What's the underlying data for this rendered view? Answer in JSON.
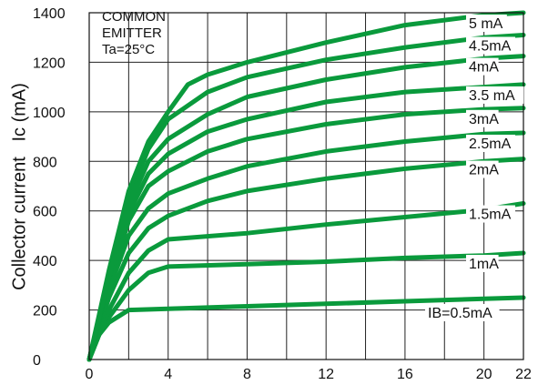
{
  "chart_data": {
    "type": "line",
    "title": "",
    "xlabel": "",
    "ylabel": "Collector current   Ic (mA)",
    "xlim": [
      0,
      22
    ],
    "ylim": [
      0,
      1400
    ],
    "xticks": [
      0,
      4,
      8,
      12,
      16,
      20,
      22
    ],
    "yticks": [
      0,
      200,
      400,
      600,
      800,
      1000,
      1200,
      1400
    ],
    "grid": true,
    "legend": "none",
    "annotation": [
      "COMMON",
      "EMITTER",
      "Ta=25°C"
    ],
    "line_color": "#0a9a3c",
    "series": [
      {
        "name": "IB=0.5mA",
        "x": [
          0,
          0.5,
          1,
          2,
          4,
          8,
          12,
          16,
          20,
          22
        ],
        "y": [
          0,
          100,
          150,
          200,
          205,
          215,
          225,
          235,
          245,
          250
        ]
      },
      {
        "name": "1mA",
        "x": [
          0,
          0.5,
          1,
          2,
          3,
          4,
          8,
          12,
          16,
          20,
          22
        ],
        "y": [
          0,
          100,
          170,
          280,
          350,
          375,
          385,
          395,
          410,
          420,
          430
        ]
      },
      {
        "name": "1.5mA",
        "x": [
          0,
          1,
          2,
          3,
          4,
          8,
          12,
          16,
          20,
          22
        ],
        "y": [
          0,
          200,
          350,
          440,
          485,
          510,
          545,
          575,
          605,
          630
        ]
      },
      {
        "name": "2mA",
        "x": [
          0,
          1,
          2,
          3,
          4,
          6,
          8,
          12,
          16,
          20,
          22
        ],
        "y": [
          0,
          250,
          430,
          530,
          580,
          640,
          680,
          730,
          770,
          800,
          810
        ]
      },
      {
        "name": "2.5mA",
        "x": [
          0,
          1,
          2,
          3,
          4,
          6,
          8,
          12,
          16,
          20,
          22
        ],
        "y": [
          0,
          280,
          500,
          610,
          670,
          730,
          780,
          840,
          880,
          910,
          915
        ]
      },
      {
        "name": "3mA",
        "x": [
          0,
          1,
          2,
          3,
          4,
          6,
          8,
          12,
          16,
          20,
          22
        ],
        "y": [
          0,
          300,
          560,
          700,
          760,
          840,
          890,
          950,
          990,
          1010,
          1015
        ]
      },
      {
        "name": "3.5 mA",
        "x": [
          0,
          1,
          2,
          3,
          4,
          6,
          8,
          12,
          16,
          20,
          22
        ],
        "y": [
          0,
          320,
          590,
          750,
          830,
          920,
          970,
          1040,
          1080,
          1100,
          1110
        ]
      },
      {
        "name": "4mA",
        "x": [
          0,
          1,
          2,
          3,
          4,
          6,
          8,
          12,
          16,
          20,
          22
        ],
        "y": [
          0,
          330,
          620,
          800,
          890,
          990,
          1060,
          1130,
          1180,
          1215,
          1225
        ]
      },
      {
        "name": "4.5mA",
        "x": [
          0,
          1,
          2,
          3,
          4,
          6,
          8,
          12,
          16,
          20,
          22
        ],
        "y": [
          0,
          340,
          650,
          850,
          970,
          1080,
          1140,
          1210,
          1260,
          1300,
          1310
        ]
      },
      {
        "name": "5 mA",
        "x": [
          0,
          1,
          2,
          3,
          4,
          5,
          6,
          8,
          12,
          16,
          20,
          22
        ],
        "y": [
          0,
          360,
          680,
          880,
          1000,
          1110,
          1150,
          1200,
          1280,
          1350,
          1390,
          1400
        ]
      }
    ]
  }
}
